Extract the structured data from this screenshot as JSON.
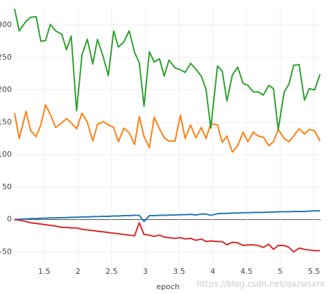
{
  "chart_data": {
    "type": "line",
    "xlabel": "epoch",
    "watermark": "https://blog.csdn.net/qazwsxrx",
    "x": [
      1.06,
      1.13,
      1.23,
      1.3,
      1.38,
      1.45,
      1.52,
      1.59,
      1.67,
      1.76,
      1.83,
      1.9,
      1.98,
      2.06,
      2.14,
      2.22,
      2.29,
      2.38,
      2.45,
      2.53,
      2.6,
      2.68,
      2.76,
      2.84,
      2.91,
      2.98,
      3.06,
      3.13,
      3.21,
      3.28,
      3.35,
      3.44,
      3.52,
      3.59,
      3.67,
      3.75,
      3.83,
      3.9,
      3.97,
      4.07,
      4.14,
      4.21,
      4.29,
      4.37,
      4.45,
      4.52,
      4.6,
      4.67,
      4.75,
      4.83,
      4.9,
      4.97,
      5.06,
      5.13,
      5.2,
      5.28,
      5.36,
      5.43,
      5.51,
      5.59
    ],
    "series": [
      {
        "color": "#1f77b4",
        "values": [
          0,
          0.5,
          1,
          1.5,
          1.5,
          2,
          2,
          2.5,
          2.5,
          3,
          3,
          3.5,
          3.5,
          4,
          4,
          4.5,
          4.5,
          5,
          5,
          5.5,
          5.5,
          6,
          6,
          6.5,
          6.5,
          -3,
          6,
          6,
          6.5,
          6.5,
          7,
          7,
          7.5,
          7.5,
          8,
          7,
          8.5,
          8.5,
          6.5,
          9,
          9.5,
          9.5,
          10,
          10,
          10.5,
          10.5,
          11,
          11,
          11,
          11.5,
          11.5,
          12,
          12,
          12,
          12.5,
          12.5,
          12.5,
          13,
          13.5,
          13.5
        ]
      },
      {
        "color": "#ff7f0e",
        "values": [
          164,
          125,
          167,
          137,
          128,
          146,
          177,
          162,
          142,
          149,
          156,
          149,
          140,
          164,
          150,
          121,
          147,
          151,
          146,
          142,
          120,
          141,
          134,
          116,
          159,
          128,
          111,
          158,
          140,
          126,
          121,
          121,
          161,
          125,
          146,
          126,
          142,
          125,
          148,
          146,
          119,
          129,
          104,
          114,
          135,
          120,
          135,
          129,
          127,
          114,
          120,
          139,
          125,
          120,
          129,
          140,
          132,
          139,
          137,
          121
        ]
      },
      {
        "color": "#2ca02c",
        "values": [
          325,
          291,
          306,
          312,
          313,
          275,
          276,
          301,
          291,
          286,
          262,
          283,
          168,
          254,
          278,
          240,
          278,
          249,
          222,
          291,
          266,
          274,
          291,
          258,
          242,
          175,
          259,
          243,
          248,
          221,
          246,
          234,
          231,
          227,
          241,
          232,
          221,
          201,
          141,
          237,
          229,
          183,
          223,
          235,
          210,
          207,
          197,
          197,
          192,
          207,
          202,
          139,
          197,
          209,
          238,
          239,
          184,
          202,
          200,
          224
        ]
      },
      {
        "color": "#d62728",
        "values": [
          0,
          -1,
          -3,
          -5,
          -6,
          -7,
          -8,
          -9,
          -10,
          -12,
          -12,
          -13,
          -13,
          -15,
          -16,
          -17,
          -18,
          -19,
          -20,
          -21,
          -22,
          -23,
          -24,
          -25,
          -5,
          -23,
          -24,
          -26,
          -24,
          -27,
          -28,
          -29,
          -28,
          -30,
          -29,
          -32,
          -30,
          -34,
          -33,
          -34,
          -34,
          -39,
          -35,
          -36,
          -40,
          -39,
          -39,
          -40,
          -43,
          -38,
          -46,
          -40,
          -40,
          -43,
          -50,
          -44,
          -46,
          -47,
          -48,
          -48
        ]
      }
    ],
    "xlim": [
      1.05,
      5.6
    ],
    "ylim": [
      -71,
      328
    ],
    "xticks": [
      1.5,
      2,
      2.5,
      3,
      3.5,
      4,
      4.5,
      5,
      5.5
    ],
    "yticks": [
      -50,
      0,
      50,
      100,
      150,
      200,
      250,
      300
    ],
    "grid": true
  }
}
